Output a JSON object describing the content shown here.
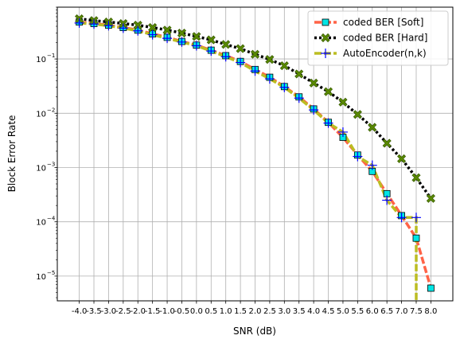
{
  "chart_data": {
    "type": "line",
    "xlabel": "SNR (dB)",
    "ylabel": "Block Error Rate",
    "yscale": "log",
    "ylim": [
      3.5e-06,
      0.9
    ],
    "xlim": [
      -4.75,
      8.75
    ],
    "grid": true,
    "legend_position": "top-right",
    "x_tick_labels": [
      "-4.0",
      "-3.5",
      "-3.0",
      "-2.5",
      "-2.0",
      "-1.5",
      "-1.0",
      "-0.5",
      "0.0",
      "0.5",
      "1.0",
      "1.5",
      "2.0",
      "2.5",
      "3.0",
      "3.5",
      "4.0",
      "4.5",
      "5.0",
      "5.5",
      "6.0",
      "6.5",
      "7.0",
      "7.5",
      "8.0"
    ],
    "y_tick_labels": [
      {
        "value": 1e-05,
        "base": "10",
        "exp": "−5"
      },
      {
        "value": 0.0001,
        "base": "10",
        "exp": "−4"
      },
      {
        "value": 0.001,
        "base": "10",
        "exp": "−3"
      },
      {
        "value": 0.01,
        "base": "10",
        "exp": "−2"
      },
      {
        "value": 0.1,
        "base": "10",
        "exp": "−1"
      }
    ],
    "x": [
      -4.0,
      -3.5,
      -3.0,
      -2.5,
      -2.0,
      -1.5,
      -1.0,
      -0.5,
      0.0,
      0.5,
      1.0,
      1.5,
      2.0,
      2.5,
      3.0,
      3.5,
      4.0,
      4.5,
      5.0,
      5.5,
      6.0,
      6.5,
      7.0,
      7.5,
      8.0
    ],
    "series": [
      {
        "name": "coded BER [Soft]",
        "color": "#ff6347",
        "marker": "square",
        "marker_fill": "#00e5e5",
        "line_style": "dashed",
        "values": [
          0.48,
          0.45,
          0.42,
          0.38,
          0.34,
          0.29,
          0.25,
          0.21,
          0.18,
          0.145,
          0.115,
          0.09,
          0.064,
          0.046,
          0.031,
          0.02,
          0.012,
          0.0068,
          0.0036,
          0.0017,
          0.00085,
          0.00033,
          0.00013,
          5e-05,
          6e-06
        ]
      },
      {
        "name": "coded BER [Hard]",
        "color": "#000000",
        "marker": "x",
        "marker_fill": "#5a8a00",
        "line_style": "dotted",
        "values": [
          0.55,
          0.51,
          0.48,
          0.45,
          0.42,
          0.38,
          0.34,
          0.3,
          0.26,
          0.225,
          0.185,
          0.155,
          0.122,
          0.098,
          0.075,
          0.053,
          0.036,
          0.025,
          0.016,
          0.0095,
          0.0055,
          0.0028,
          0.00145,
          0.00065,
          0.00027
        ]
      },
      {
        "name": "AutoEncoder(n,k)",
        "color": "#bcbd22",
        "marker": "plus",
        "marker_fill": "#0000ff",
        "line_style": "dashed",
        "values": [
          0.46,
          0.44,
          0.41,
          0.37,
          0.33,
          0.28,
          0.24,
          0.205,
          0.175,
          0.14,
          0.11,
          0.086,
          0.06,
          0.043,
          0.03,
          0.019,
          0.0115,
          0.0066,
          0.0045,
          0.0016,
          0.0011,
          0.00025,
          0.00012,
          0.00012,
          null
        ]
      }
    ]
  }
}
